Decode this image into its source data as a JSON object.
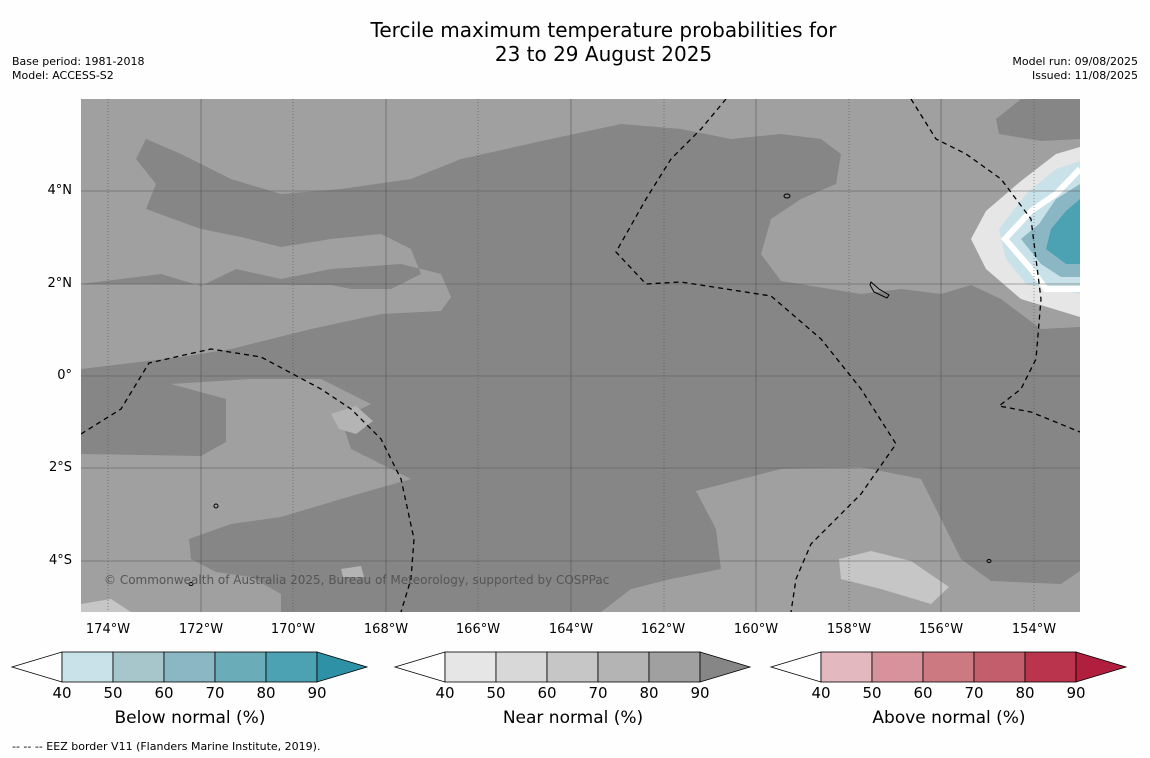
{
  "title": {
    "line1": "Tercile maximum temperature probabilities for",
    "line2": "23 to 29 August 2025"
  },
  "meta": {
    "base_period": "Base period: 1981-2018",
    "model": "Model: ACCESS-S2",
    "model_run": "Model run: 09/08/2025",
    "issued": "Issued: 11/08/2025"
  },
  "map": {
    "copyright": "© Commonwealth of Australia 2025, Bureau of Meteorology, supported by COSPPac",
    "lat_ticks": [
      "4°N",
      "2°N",
      "0°",
      "2°S",
      "4°S"
    ],
    "lon_ticks": [
      "174°W",
      "172°W",
      "170°W",
      "168°W",
      "166°W",
      "164°W",
      "162°W",
      "160°W",
      "158°W",
      "156°W",
      "154°W"
    ]
  },
  "legends": {
    "ticks": [
      "40",
      "50",
      "60",
      "70",
      "80",
      "90"
    ],
    "below": {
      "label": "Below normal (%)",
      "colors": [
        "#c9e2e9",
        "#a6c6cc",
        "#8ab7c3",
        "#6aacb8",
        "#4ca1b2",
        "#2e91a6"
      ]
    },
    "near": {
      "label": "Near normal (%)",
      "colors": [
        "#e6e6e6",
        "#d8d8d8",
        "#c6c6c6",
        "#b4b4b4",
        "#a0a0a0",
        "#868686"
      ]
    },
    "above": {
      "label": "Above normal (%)",
      "colors": [
        "#e4b8bf",
        "#d7929b",
        "#cc7982",
        "#c35e6c",
        "#b9344c",
        "#b21e3e"
      ]
    }
  },
  "footnote": "--  --  -- EEZ border V11 (Flanders Marine Institute, 2019)."
}
